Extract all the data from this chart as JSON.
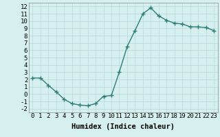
{
  "x": [
    0,
    1,
    2,
    3,
    4,
    5,
    6,
    7,
    8,
    9,
    10,
    11,
    12,
    13,
    14,
    15,
    16,
    17,
    18,
    19,
    20,
    21,
    22,
    23
  ],
  "y": [
    2.2,
    2.2,
    1.2,
    0.3,
    -0.7,
    -1.3,
    -1.5,
    -1.6,
    -1.3,
    -0.3,
    -0.2,
    3.0,
    6.5,
    8.7,
    11.0,
    11.8,
    10.7,
    10.1,
    9.7,
    9.6,
    9.2,
    9.2,
    9.1,
    8.7
  ],
  "line_color": "#2e7d72",
  "marker": "+",
  "markersize": 4,
  "linewidth": 1.0,
  "bg_color": "#d6efef",
  "grid_color": "#b8d8d8",
  "xlabel": "Humidex (Indice chaleur)",
  "xlim": [
    -0.5,
    23.5
  ],
  "ylim": [
    -2.5,
    12.5
  ],
  "yticks": [
    -2,
    -1,
    0,
    1,
    2,
    3,
    4,
    5,
    6,
    7,
    8,
    9,
    10,
    11,
    12
  ],
  "xticks": [
    0,
    1,
    2,
    3,
    4,
    5,
    6,
    7,
    8,
    9,
    10,
    11,
    12,
    13,
    14,
    15,
    16,
    17,
    18,
    19,
    20,
    21,
    22,
    23
  ],
  "xlabel_fontsize": 7.5,
  "tick_fontsize": 6.5
}
